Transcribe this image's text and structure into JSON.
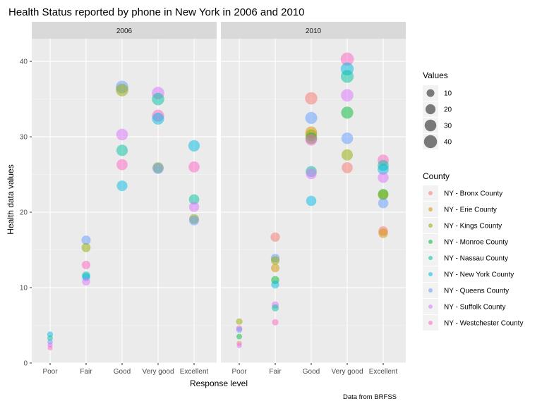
{
  "chart_data": {
    "type": "scatter",
    "title": "Health Status reported by phone in New York in 2006 and 2010",
    "xlabel": "Response level",
    "ylabel": "Health data values",
    "caption": "Data from BRFSS",
    "categories": [
      "Poor",
      "Fair",
      "Good",
      "Very good",
      "Excellent"
    ],
    "ylim": [
      0,
      43
    ],
    "yticks": [
      0,
      10,
      20,
      30,
      40
    ],
    "grid": true,
    "legend_position": "right",
    "size_legend": {
      "title": "Values",
      "breaks": [
        10,
        20,
        30,
        40
      ]
    },
    "color_legend": {
      "title": "County"
    },
    "series": [
      {
        "name": "NY - Bronx County",
        "color": "#F8766D"
      },
      {
        "name": "NY - Erie County",
        "color": "#D39200"
      },
      {
        "name": "NY - Kings County",
        "color": "#93AA00"
      },
      {
        "name": "NY - Monroe County",
        "color": "#00BA38"
      },
      {
        "name": "NY - Nassau County",
        "color": "#00C19F"
      },
      {
        "name": "NY - New York County",
        "color": "#00B9E3"
      },
      {
        "name": "NY - Queens County",
        "color": "#619CFF"
      },
      {
        "name": "NY - Suffolk County",
        "color": "#DB72FB"
      },
      {
        "name": "NY - Westchester County",
        "color": "#FF61C3"
      }
    ],
    "panels": [
      {
        "label": "2006",
        "points": [
          {
            "x": "Poor",
            "y": 3.8,
            "county": 5
          },
          {
            "x": "Poor",
            "y": 3.3,
            "county": 4
          },
          {
            "x": "Poor",
            "y": 2.8,
            "county": 6
          },
          {
            "x": "Poor",
            "y": 2.4,
            "county": 7
          },
          {
            "x": "Poor",
            "y": 2.0,
            "county": 8
          },
          {
            "x": "Fair",
            "y": 16.3,
            "county": 6
          },
          {
            "x": "Fair",
            "y": 15.3,
            "county": 2
          },
          {
            "x": "Fair",
            "y": 13.0,
            "county": 8
          },
          {
            "x": "Fair",
            "y": 11.6,
            "county": 4
          },
          {
            "x": "Fair",
            "y": 11.4,
            "county": 5
          },
          {
            "x": "Fair",
            "y": 10.8,
            "county": 7
          },
          {
            "x": "Good",
            "y": 36.6,
            "county": 6
          },
          {
            "x": "Good",
            "y": 36.2,
            "county": 2
          },
          {
            "x": "Good",
            "y": 30.3,
            "county": 7
          },
          {
            "x": "Good",
            "y": 28.2,
            "county": 4
          },
          {
            "x": "Good",
            "y": 26.3,
            "county": 8
          },
          {
            "x": "Good",
            "y": 23.5,
            "county": 5
          },
          {
            "x": "Very good",
            "y": 35.8,
            "county": 7
          },
          {
            "x": "Very good",
            "y": 35.0,
            "county": 4
          },
          {
            "x": "Very good",
            "y": 32.8,
            "county": 8
          },
          {
            "x": "Very good",
            "y": 32.4,
            "county": 5
          },
          {
            "x": "Very good",
            "y": 25.9,
            "county": 2
          },
          {
            "x": "Very good",
            "y": 25.8,
            "county": 6
          },
          {
            "x": "Excellent",
            "y": 28.8,
            "county": 5
          },
          {
            "x": "Excellent",
            "y": 26.0,
            "county": 8
          },
          {
            "x": "Excellent",
            "y": 21.7,
            "county": 4
          },
          {
            "x": "Excellent",
            "y": 20.7,
            "county": 7
          },
          {
            "x": "Excellent",
            "y": 19.1,
            "county": 2
          },
          {
            "x": "Excellent",
            "y": 18.9,
            "county": 6
          }
        ]
      },
      {
        "label": "2010",
        "points": [
          {
            "x": "Poor",
            "y": 5.5,
            "county": 2
          },
          {
            "x": "Poor",
            "y": 4.6,
            "county": 8
          },
          {
            "x": "Poor",
            "y": 4.4,
            "county": 6
          },
          {
            "x": "Poor",
            "y": 3.5,
            "county": 3
          },
          {
            "x": "Poor",
            "y": 2.6,
            "county": 0
          },
          {
            "x": "Poor",
            "y": 2.3,
            "county": 7
          },
          {
            "x": "Fair",
            "y": 16.7,
            "county": 0
          },
          {
            "x": "Fair",
            "y": 13.9,
            "county": 6
          },
          {
            "x": "Fair",
            "y": 13.6,
            "county": 2
          },
          {
            "x": "Fair",
            "y": 12.6,
            "county": 1
          },
          {
            "x": "Fair",
            "y": 11.0,
            "county": 3
          },
          {
            "x": "Fair",
            "y": 10.4,
            "county": 5
          },
          {
            "x": "Fair",
            "y": 7.7,
            "county": 7
          },
          {
            "x": "Fair",
            "y": 7.3,
            "county": 4
          },
          {
            "x": "Fair",
            "y": 5.4,
            "county": 8
          },
          {
            "x": "Good",
            "y": 35.1,
            "county": 0
          },
          {
            "x": "Good",
            "y": 32.5,
            "county": 6
          },
          {
            "x": "Good",
            "y": 30.6,
            "county": 1
          },
          {
            "x": "Good",
            "y": 30.2,
            "county": 2
          },
          {
            "x": "Good",
            "y": 29.8,
            "county": 3
          },
          {
            "x": "Good",
            "y": 29.6,
            "county": 8
          },
          {
            "x": "Good",
            "y": 25.4,
            "county": 4
          },
          {
            "x": "Good",
            "y": 25.1,
            "county": 7
          },
          {
            "x": "Good",
            "y": 21.5,
            "county": 5
          },
          {
            "x": "Very good",
            "y": 40.3,
            "county": 8
          },
          {
            "x": "Very good",
            "y": 39.0,
            "county": 5
          },
          {
            "x": "Very good",
            "y": 38.0,
            "county": 4
          },
          {
            "x": "Very good",
            "y": 35.5,
            "county": 7
          },
          {
            "x": "Very good",
            "y": 33.2,
            "county": 3
          },
          {
            "x": "Very good",
            "y": 29.8,
            "county": 6
          },
          {
            "x": "Very good",
            "y": 27.6,
            "county": 2
          },
          {
            "x": "Very good",
            "y": 25.9,
            "county": 0
          },
          {
            "x": "Excellent",
            "y": 26.9,
            "county": 8
          },
          {
            "x": "Excellent",
            "y": 26.2,
            "county": 4
          },
          {
            "x": "Excellent",
            "y": 25.7,
            "county": 5
          },
          {
            "x": "Excellent",
            "y": 24.6,
            "county": 7
          },
          {
            "x": "Excellent",
            "y": 22.4,
            "county": 3
          },
          {
            "x": "Excellent",
            "y": 22.3,
            "county": 2
          },
          {
            "x": "Excellent",
            "y": 21.2,
            "county": 6
          },
          {
            "x": "Excellent",
            "y": 17.5,
            "county": 0
          },
          {
            "x": "Excellent",
            "y": 17.2,
            "county": 1
          }
        ]
      }
    ]
  }
}
